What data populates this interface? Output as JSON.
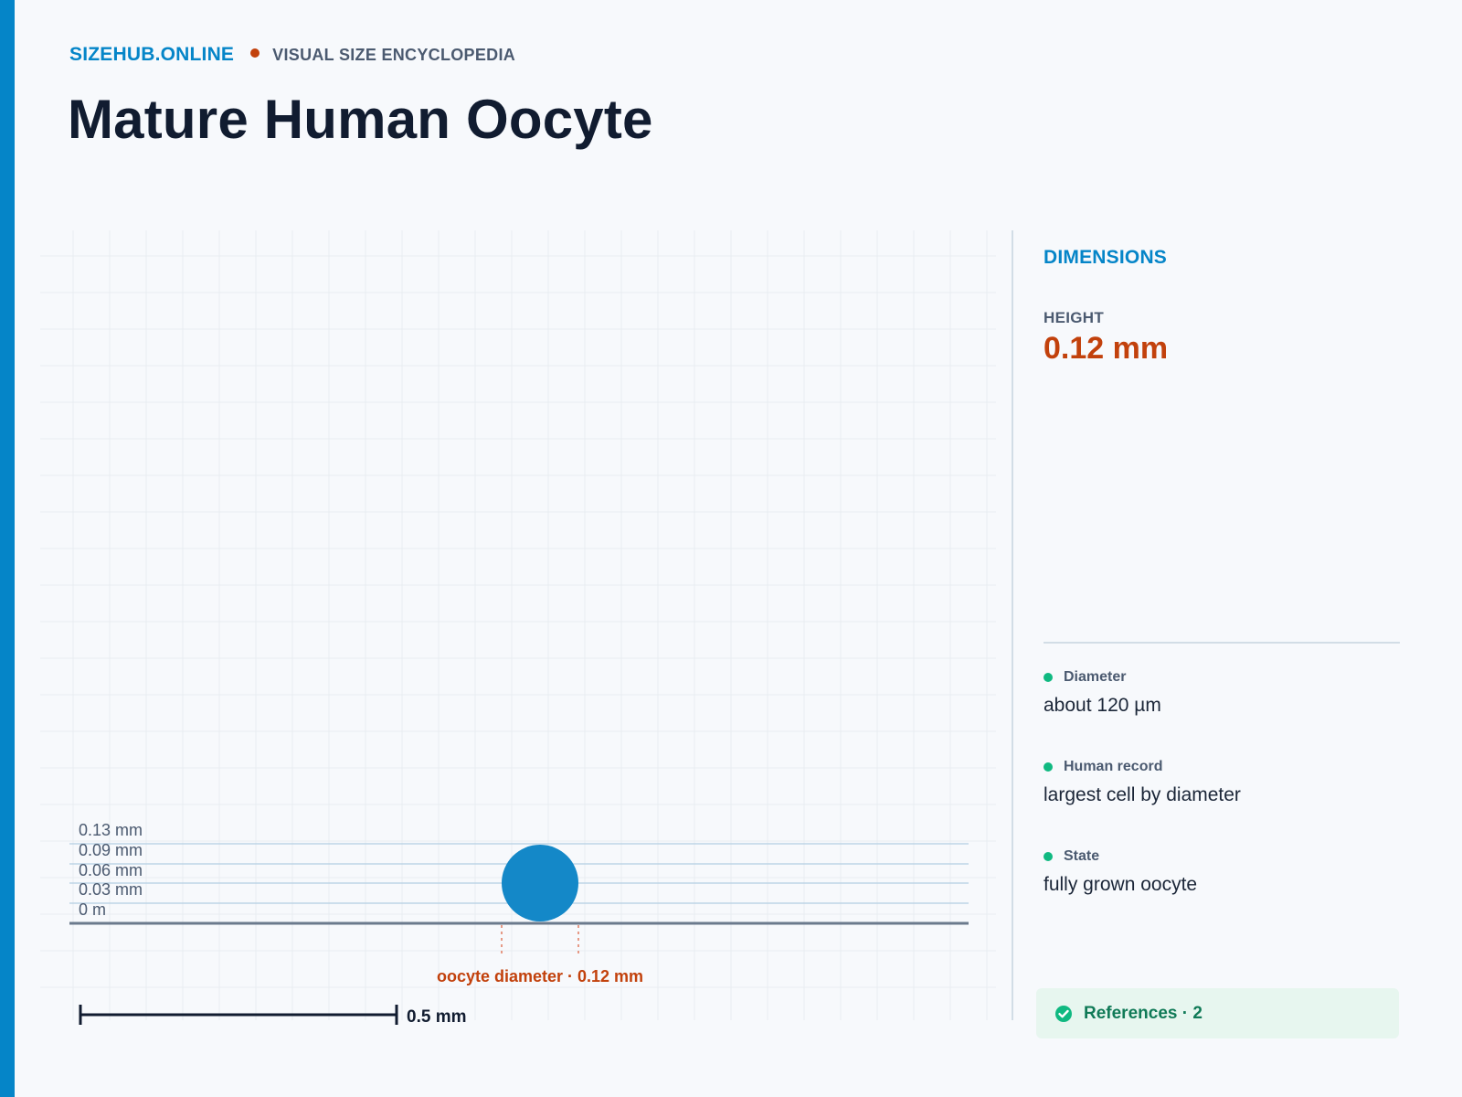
{
  "site": {
    "brand": "SIZEHUB.ONLINE",
    "tagline": "VISUAL SIZE ENCYCLOPEDIA"
  },
  "page": {
    "title": "Mature Human Oocyte"
  },
  "diagram": {
    "y_axis_ticks": [
      "0.13 mm",
      "0.09 mm",
      "0.06 mm",
      "0.03 mm",
      "0 m"
    ],
    "object_label": "oocyte diameter · 0.12 mm",
    "scale_bar_label": "0.5 mm",
    "object_color": "#1488c8",
    "label_color": "#c2410c"
  },
  "panel": {
    "heading": "DIMENSIONS",
    "height_label": "HEIGHT",
    "height_value": "0.12 mm",
    "facts": [
      {
        "label": "Diameter",
        "value": "about 120 µm"
      },
      {
        "label": "Human record",
        "value": "largest cell by diameter"
      },
      {
        "label": "State",
        "value": "fully grown oocyte"
      }
    ],
    "references_label": "References · 2",
    "references_icon": "check-circle-icon"
  },
  "colors": {
    "accent": "#0585c8",
    "highlight": "#c2410c",
    "success": "#10b981"
  }
}
